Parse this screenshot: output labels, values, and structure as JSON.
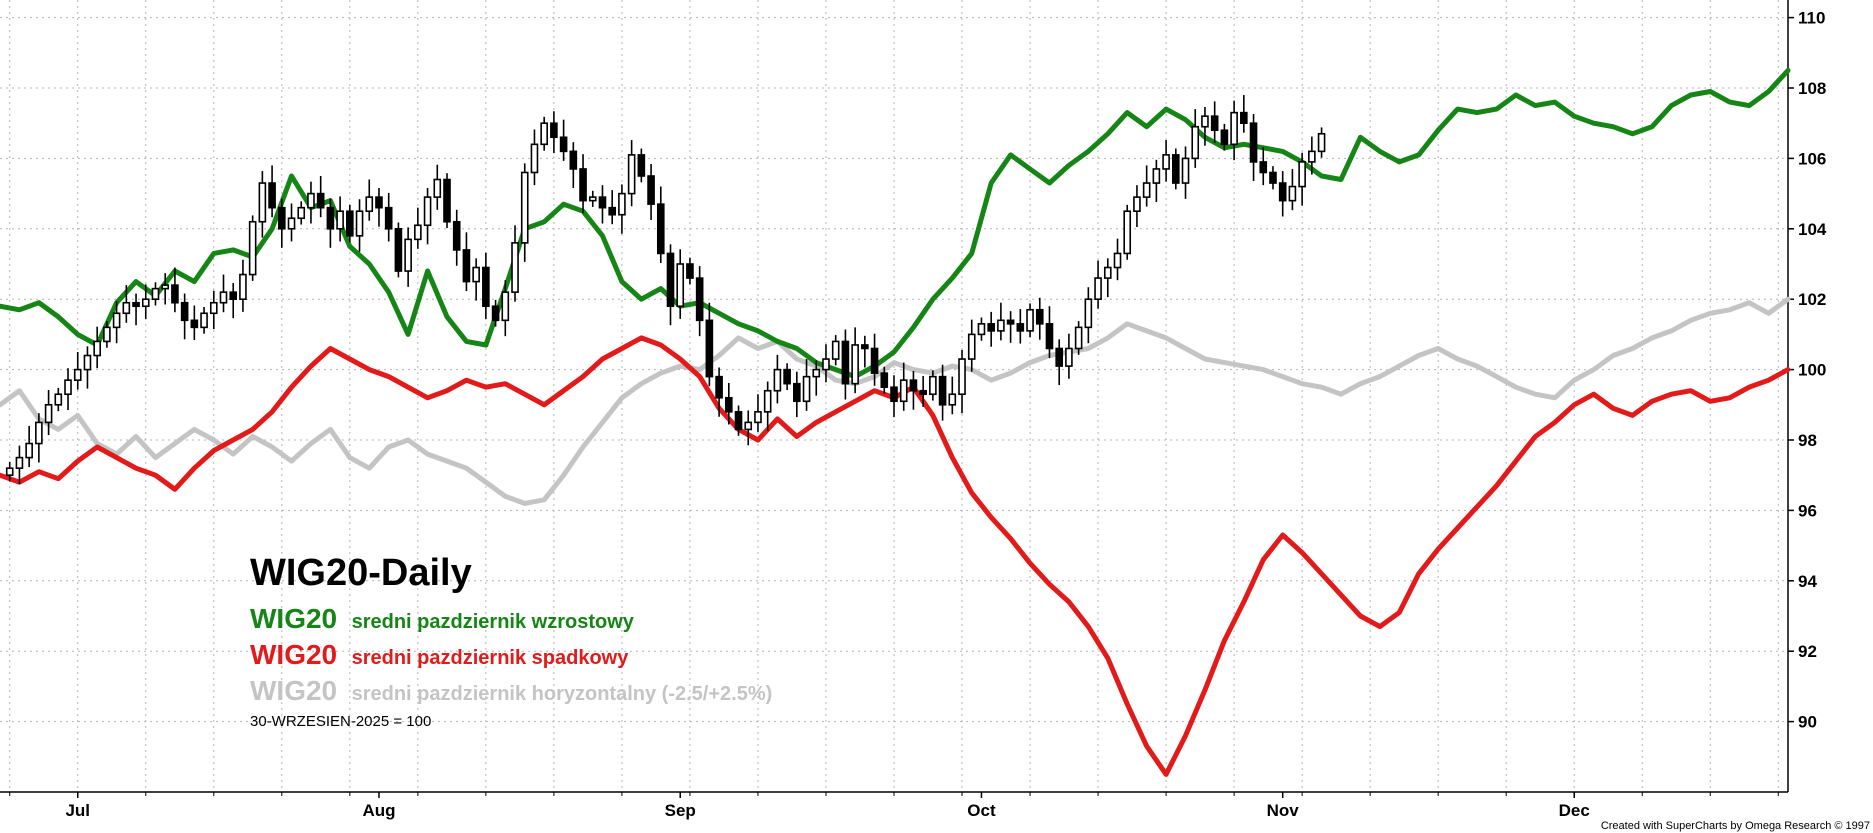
{
  "title": "WIG20-Daily",
  "legend": [
    {
      "symbol": "WIG20",
      "text": "sredni pazdziernik wzrostowy",
      "color": "#158515"
    },
    {
      "symbol": "WIG20",
      "text": "sredni pazdziernik spadkowy",
      "color": "#e21a1a"
    },
    {
      "symbol": "WIG20",
      "text": "sredni pazdziernik horyzontalny (-2.5/+2.5%)",
      "color": "#c4c4c4"
    }
  ],
  "note": "30-WRZESIEN-2025 = 100",
  "credit": "Created with SuperCharts by Omega Research © 1997",
  "chart_data": {
    "type": "line",
    "xaxis": {
      "labels": [
        "Jul",
        "Aug",
        "Sep",
        "Oct",
        "Nov",
        "Dec"
      ],
      "label_days": [
        5,
        36,
        67,
        98,
        129,
        159
      ],
      "range": [
        -3,
        181
      ]
    },
    "yaxis": {
      "ticks": [
        90,
        92,
        94,
        96,
        98,
        100,
        102,
        104,
        106,
        108,
        110
      ],
      "range": [
        88,
        110.5
      ],
      "side": "right"
    },
    "grid": true,
    "series": [
      {
        "name": "sredni pazdziernik wzrostowy",
        "color": "#158515",
        "x": [
          -3,
          -1,
          1,
          3,
          5,
          7,
          9,
          11,
          13,
          15,
          17,
          19,
          21,
          23,
          25,
          27,
          29,
          31,
          33,
          35,
          37,
          39,
          41,
          43,
          45,
          47,
          49,
          51,
          53,
          55,
          57,
          59,
          61,
          63,
          65,
          67,
          69,
          71,
          73,
          75,
          77,
          79,
          81,
          83,
          85,
          87,
          89,
          91,
          93,
          95,
          97,
          99,
          101,
          103,
          105,
          107,
          109,
          111,
          113,
          115,
          117,
          119,
          121,
          123,
          125,
          127,
          129,
          131,
          133,
          135,
          137,
          139,
          141,
          143,
          145,
          147,
          149,
          151,
          153,
          155,
          157,
          159,
          161,
          163,
          165,
          167,
          169,
          171,
          173,
          175,
          177,
          179,
          181
        ],
        "y": [
          101.8,
          101.7,
          101.9,
          101.5,
          101.0,
          100.7,
          101.9,
          102.5,
          102.1,
          102.8,
          102.5,
          103.3,
          103.4,
          103.2,
          104.0,
          105.5,
          104.6,
          104.8,
          103.5,
          103.0,
          102.2,
          101.0,
          102.8,
          101.5,
          100.8,
          100.7,
          102.3,
          104.0,
          104.2,
          104.7,
          104.5,
          103.8,
          102.5,
          102.0,
          102.3,
          101.8,
          101.9,
          101.6,
          101.3,
          101.1,
          100.8,
          100.6,
          100.2,
          100.0,
          99.8,
          100.1,
          100.5,
          101.2,
          102.0,
          102.6,
          103.3,
          105.3,
          106.1,
          105.7,
          105.3,
          105.8,
          106.2,
          106.7,
          107.3,
          106.9,
          107.4,
          107.1,
          106.6,
          106.3,
          106.4,
          106.3,
          106.2,
          105.9,
          105.5,
          105.4,
          106.6,
          106.2,
          105.9,
          106.1,
          106.8,
          107.4,
          107.3,
          107.4,
          107.8,
          107.5,
          107.6,
          107.2,
          107.0,
          106.9,
          106.7,
          106.9,
          107.5,
          107.8,
          107.9,
          107.6,
          107.5,
          107.9,
          108.5
        ]
      },
      {
        "name": "sredni pazdziernik spadkowy",
        "color": "#e21a1a",
        "x": [
          -3,
          -1,
          1,
          3,
          5,
          7,
          9,
          11,
          13,
          15,
          17,
          19,
          21,
          23,
          25,
          27,
          29,
          31,
          33,
          35,
          37,
          39,
          41,
          43,
          45,
          47,
          49,
          51,
          53,
          55,
          57,
          59,
          61,
          63,
          65,
          67,
          69,
          71,
          73,
          75,
          77,
          79,
          81,
          83,
          85,
          87,
          89,
          91,
          93,
          95,
          97,
          99,
          101,
          103,
          105,
          107,
          109,
          111,
          113,
          115,
          117,
          119,
          121,
          123,
          125,
          127,
          129,
          131,
          133,
          135,
          137,
          139,
          141,
          143,
          145,
          147,
          149,
          151,
          153,
          155,
          157,
          159,
          161,
          163,
          165,
          167,
          169,
          171,
          173,
          175,
          177,
          179,
          181
        ],
        "y": [
          97.0,
          96.8,
          97.1,
          96.9,
          97.4,
          97.8,
          97.5,
          97.2,
          97.0,
          96.6,
          97.2,
          97.7,
          98.0,
          98.3,
          98.8,
          99.5,
          100.1,
          100.6,
          100.3,
          100.0,
          99.8,
          99.5,
          99.2,
          99.4,
          99.7,
          99.5,
          99.6,
          99.3,
          99.0,
          99.4,
          99.8,
          100.3,
          100.6,
          100.9,
          100.7,
          100.3,
          99.8,
          98.9,
          98.3,
          98.0,
          98.6,
          98.1,
          98.5,
          98.8,
          99.1,
          99.4,
          99.2,
          99.5,
          98.7,
          97.5,
          96.5,
          95.8,
          95.2,
          94.5,
          93.9,
          93.4,
          92.7,
          91.8,
          90.5,
          89.3,
          88.5,
          89.6,
          90.9,
          92.3,
          93.4,
          94.6,
          95.3,
          94.8,
          94.2,
          93.6,
          93.0,
          92.7,
          93.1,
          94.2,
          94.9,
          95.5,
          96.1,
          96.7,
          97.4,
          98.1,
          98.5,
          99.0,
          99.3,
          98.9,
          98.7,
          99.1,
          99.3,
          99.4,
          99.1,
          99.2,
          99.5,
          99.7,
          100.0
        ]
      },
      {
        "name": "sredni pazdziernik horyzontalny (-2.5/+2.5%)",
        "color": "#c4c4c4",
        "x": [
          -3,
          -1,
          1,
          3,
          5,
          7,
          9,
          11,
          13,
          15,
          17,
          19,
          21,
          23,
          25,
          27,
          29,
          31,
          33,
          35,
          37,
          39,
          41,
          43,
          45,
          47,
          49,
          51,
          53,
          55,
          57,
          59,
          61,
          63,
          65,
          67,
          69,
          71,
          73,
          75,
          77,
          79,
          81,
          83,
          85,
          87,
          89,
          91,
          93,
          95,
          97,
          99,
          101,
          103,
          105,
          107,
          109,
          111,
          113,
          115,
          117,
          119,
          121,
          123,
          125,
          127,
          129,
          131,
          133,
          135,
          137,
          139,
          141,
          143,
          145,
          147,
          149,
          151,
          153,
          155,
          157,
          159,
          161,
          163,
          165,
          167,
          169,
          171,
          173,
          175,
          177,
          179,
          181
        ],
        "y": [
          99.0,
          99.4,
          98.6,
          98.3,
          98.7,
          97.9,
          97.6,
          98.1,
          97.5,
          97.9,
          98.3,
          98.0,
          97.6,
          98.1,
          97.8,
          97.4,
          97.9,
          98.3,
          97.5,
          97.2,
          97.8,
          98.0,
          97.6,
          97.4,
          97.2,
          96.8,
          96.4,
          96.2,
          96.3,
          97.0,
          97.8,
          98.5,
          99.2,
          99.6,
          99.9,
          100.1,
          100.0,
          100.4,
          100.9,
          100.6,
          100.8,
          100.3,
          100.1,
          99.7,
          99.6,
          99.8,
          100.2,
          100.0,
          99.9,
          100.1,
          100.0,
          99.7,
          99.9,
          100.2,
          100.4,
          100.5,
          100.6,
          100.9,
          101.3,
          101.1,
          100.9,
          100.6,
          100.3,
          100.2,
          100.1,
          100.0,
          99.8,
          99.6,
          99.5,
          99.3,
          99.6,
          99.8,
          100.1,
          100.4,
          100.6,
          100.3,
          100.1,
          99.8,
          99.5,
          99.3,
          99.2,
          99.7,
          100.0,
          100.4,
          100.6,
          100.9,
          101.1,
          101.4,
          101.6,
          101.7,
          101.9,
          101.6,
          102.0
        ]
      }
    ],
    "candles": {
      "x": [
        -2,
        -1,
        0,
        1,
        2,
        3,
        4,
        5,
        6,
        7,
        8,
        9,
        10,
        11,
        12,
        13,
        14,
        15,
        16,
        17,
        18,
        19,
        20,
        21,
        22,
        23,
        24,
        25,
        26,
        27,
        28,
        29,
        30,
        31,
        32,
        33,
        34,
        35,
        36,
        37,
        38,
        39,
        40,
        41,
        42,
        43,
        44,
        45,
        46,
        47,
        48,
        49,
        50,
        51,
        52,
        53,
        54,
        55,
        56,
        57,
        58,
        59,
        60,
        61,
        62,
        63,
        64,
        65,
        66,
        67,
        68,
        69,
        70,
        71,
        72,
        73,
        74,
        75,
        76,
        77,
        78,
        79,
        80,
        81,
        82,
        83,
        84,
        85,
        86,
        87,
        88,
        89,
        90,
        91,
        92,
        93,
        94,
        95,
        96,
        97,
        98,
        99,
        100,
        101,
        102,
        103,
        104,
        105,
        106,
        107,
        108,
        109,
        110,
        111,
        112,
        113,
        114,
        115,
        116,
        117,
        118,
        119,
        120,
        121,
        122,
        123,
        124,
        125,
        126,
        127,
        128,
        129,
        130,
        131,
        132,
        133
      ],
      "open": [
        97.0,
        97.2,
        97.5,
        97.9,
        98.5,
        99.0,
        99.3,
        99.7,
        100.0,
        100.4,
        100.8,
        101.2,
        101.6,
        101.9,
        101.8,
        102.0,
        102.3,
        102.4,
        101.9,
        101.4,
        101.2,
        101.6,
        101.9,
        102.2,
        102.0,
        102.7,
        104.2,
        105.3,
        104.6,
        104.0,
        104.3,
        104.6,
        105.0,
        104.6,
        104.0,
        104.5,
        103.8,
        104.5,
        104.9,
        104.6,
        104.0,
        102.8,
        103.7,
        104.1,
        104.9,
        105.4,
        104.2,
        103.4,
        102.5,
        102.9,
        101.8,
        101.4,
        102.2,
        103.6,
        105.6,
        106.4,
        107.0,
        106.6,
        106.2,
        105.7,
        104.8,
        104.9,
        104.6,
        104.4,
        105.0,
        106.1,
        105.5,
        104.7,
        103.3,
        101.8,
        103.0,
        102.6,
        101.4,
        99.8,
        99.2,
        98.8,
        98.3,
        98.5,
        98.8,
        99.4,
        100.0,
        99.6,
        99.1,
        99.8,
        100.0,
        100.3,
        100.8,
        99.6,
        100.7,
        100.6,
        99.9,
        99.5,
        99.1,
        99.7,
        99.4,
        99.3,
        99.8,
        99.0,
        99.3,
        100.3,
        101.0,
        101.3,
        101.1,
        101.4,
        101.3,
        101.1,
        101.7,
        101.3,
        100.6,
        100.1,
        100.6,
        101.2,
        102.0,
        102.6,
        102.9,
        103.3,
        104.5,
        104.9,
        105.3,
        105.7,
        106.1,
        105.3,
        106.0,
        106.9,
        107.2,
        106.8,
        106.4,
        107.3,
        107.0,
        105.9,
        105.6,
        105.3,
        104.8,
        105.2,
        105.9,
        106.2
      ],
      "close": [
        97.2,
        97.5,
        97.9,
        98.5,
        99.0,
        99.3,
        99.7,
        100.0,
        100.4,
        100.8,
        101.2,
        101.6,
        101.9,
        101.8,
        102.0,
        102.3,
        102.4,
        101.9,
        101.4,
        101.2,
        101.6,
        101.9,
        102.2,
        102.0,
        102.7,
        104.2,
        105.3,
        104.6,
        104.0,
        104.3,
        104.6,
        105.0,
        104.6,
        104.0,
        104.5,
        103.8,
        104.5,
        104.9,
        104.6,
        104.0,
        102.8,
        103.7,
        104.1,
        104.9,
        105.4,
        104.2,
        103.4,
        102.5,
        102.9,
        101.8,
        101.4,
        102.2,
        103.6,
        105.6,
        106.4,
        107.0,
        106.6,
        106.2,
        105.7,
        104.8,
        104.9,
        104.6,
        104.4,
        105.0,
        106.1,
        105.5,
        104.7,
        103.3,
        101.8,
        103.0,
        102.6,
        101.4,
        99.8,
        99.2,
        98.8,
        98.3,
        98.5,
        98.8,
        99.4,
        100.0,
        99.6,
        99.1,
        99.8,
        100.0,
        100.3,
        100.8,
        99.6,
        100.7,
        100.6,
        99.9,
        99.5,
        99.1,
        99.7,
        99.4,
        99.3,
        99.8,
        99.0,
        99.3,
        100.3,
        101.0,
        101.3,
        101.1,
        101.4,
        101.3,
        101.1,
        101.7,
        101.3,
        100.6,
        100.1,
        100.6,
        101.2,
        102.0,
        102.6,
        102.9,
        103.3,
        104.5,
        104.9,
        105.3,
        105.7,
        106.1,
        105.3,
        106.0,
        106.9,
        107.2,
        106.8,
        106.4,
        107.3,
        107.0,
        105.9,
        105.6,
        105.3,
        104.8,
        105.2,
        105.9,
        106.2,
        106.7
      ]
    }
  }
}
